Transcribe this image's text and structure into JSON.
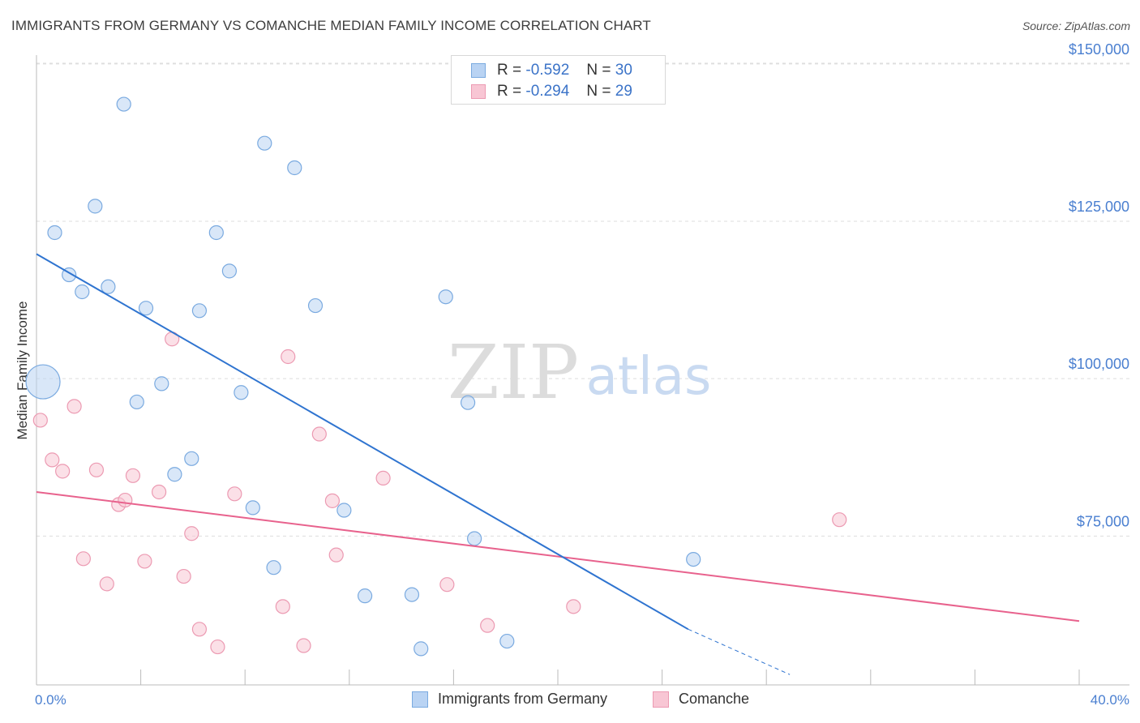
{
  "title": "IMMIGRANTS FROM GERMANY VS COMANCHE MEDIAN FAMILY INCOME CORRELATION CHART",
  "source": "Source: ZipAtlas.com",
  "watermark": {
    "zip": "ZIP",
    "atlas": "atlas"
  },
  "legend": [
    {
      "r_label": "R =",
      "r_value": "-0.592",
      "n_label": "N =",
      "n_value": "30"
    },
    {
      "r_label": "R =",
      "r_value": "-0.294",
      "n_label": "N =",
      "n_value": "29"
    }
  ],
  "bottom_legend": [
    {
      "label": "Immigrants from Germany"
    },
    {
      "label": "Comanche"
    }
  ],
  "colors": {
    "blue_fill": "#b9d3f3",
    "blue_stroke": "#7aaae0",
    "blue_line": "#2f74d0",
    "pink_fill": "#f8c6d4",
    "pink_stroke": "#ec9ab2",
    "pink_line": "#e8628d",
    "axis_text": "#4a7fd0",
    "grid": "#dddddd"
  },
  "chart_data": {
    "type": "scatter",
    "title": "IMMIGRANTS FROM GERMANY VS COMANCHE MEDIAN FAMILY INCOME CORRELATION CHART",
    "xlabel": "",
    "ylabel": "Median Family Income",
    "xlim": [
      0,
      40
    ],
    "ylim": [
      52000,
      155000
    ],
    "x_tick_labels": [
      "0.0%",
      "40.0%"
    ],
    "y_ticks": [
      150000,
      125000,
      100000,
      75000
    ],
    "y_tick_labels": [
      "$150,000",
      "$125,000",
      "$100,000",
      "$75,000"
    ],
    "grid": true,
    "legend_position": "top-center",
    "series": [
      {
        "name": "Immigrants from Germany",
        "r": -0.592,
        "n": 30,
        "points": [
          [
            0.25,
            99500,
            3
          ],
          [
            0.7,
            123200,
            1
          ],
          [
            1.25,
            116500,
            1
          ],
          [
            1.75,
            113800,
            1
          ],
          [
            2.25,
            127400,
            1
          ],
          [
            2.75,
            114600,
            1
          ],
          [
            3.35,
            143600,
            1
          ],
          [
            3.85,
            96300,
            1
          ],
          [
            4.2,
            111200,
            1
          ],
          [
            4.8,
            99200,
            1
          ],
          [
            5.3,
            84800,
            1
          ],
          [
            5.95,
            87300,
            1
          ],
          [
            6.25,
            110800,
            1
          ],
          [
            6.9,
            123200,
            1
          ],
          [
            7.4,
            117100,
            1
          ],
          [
            7.85,
            97800,
            1
          ],
          [
            8.3,
            79500,
            1
          ],
          [
            8.75,
            137400,
            1
          ],
          [
            9.1,
            70000,
            1
          ],
          [
            9.9,
            133500,
            1
          ],
          [
            10.7,
            111600,
            1
          ],
          [
            11.8,
            79100,
            1
          ],
          [
            12.6,
            65500,
            1
          ],
          [
            14.4,
            65700,
            1
          ],
          [
            14.75,
            57100,
            1
          ],
          [
            15.7,
            113000,
            1
          ],
          [
            16.55,
            96200,
            1
          ],
          [
            16.8,
            74600,
            1
          ],
          [
            18.05,
            58300,
            1
          ],
          [
            25.2,
            71300,
            1
          ]
        ],
        "trend": {
          "x": [
            0.0,
            25.0
          ],
          "y": [
            119800,
            60200
          ]
        },
        "trend_extension": {
          "x": [
            25.0,
            28.9
          ],
          "y": [
            60200,
            53000
          ]
        }
      },
      {
        "name": "Comanche",
        "r": -0.294,
        "n": 29,
        "points": [
          [
            0.15,
            93400,
            1
          ],
          [
            0.6,
            87100,
            1
          ],
          [
            1.0,
            85300,
            1
          ],
          [
            1.45,
            95600,
            1
          ],
          [
            1.8,
            71400,
            1
          ],
          [
            2.3,
            85500,
            1
          ],
          [
            2.7,
            67400,
            1
          ],
          [
            3.15,
            80000,
            1
          ],
          [
            3.4,
            80700,
            1
          ],
          [
            3.7,
            84600,
            1
          ],
          [
            4.15,
            71000,
            1
          ],
          [
            4.7,
            82000,
            1
          ],
          [
            5.2,
            106300,
            1
          ],
          [
            5.65,
            68600,
            1
          ],
          [
            5.95,
            75400,
            1
          ],
          [
            6.25,
            60200,
            1
          ],
          [
            6.95,
            57400,
            1
          ],
          [
            7.6,
            81700,
            1
          ],
          [
            9.45,
            63800,
            1
          ],
          [
            9.65,
            103500,
            1
          ],
          [
            10.25,
            57600,
            1
          ],
          [
            10.85,
            91200,
            1
          ],
          [
            11.35,
            80600,
            1
          ],
          [
            11.5,
            72000,
            1
          ],
          [
            13.3,
            84200,
            1
          ],
          [
            15.75,
            67300,
            1
          ],
          [
            17.3,
            60800,
            1
          ],
          [
            20.6,
            63800,
            1
          ],
          [
            30.8,
            77600,
            1
          ]
        ],
        "trend": {
          "x": [
            0.0,
            40.0
          ],
          "y": [
            82000,
            61500
          ]
        }
      }
    ]
  }
}
